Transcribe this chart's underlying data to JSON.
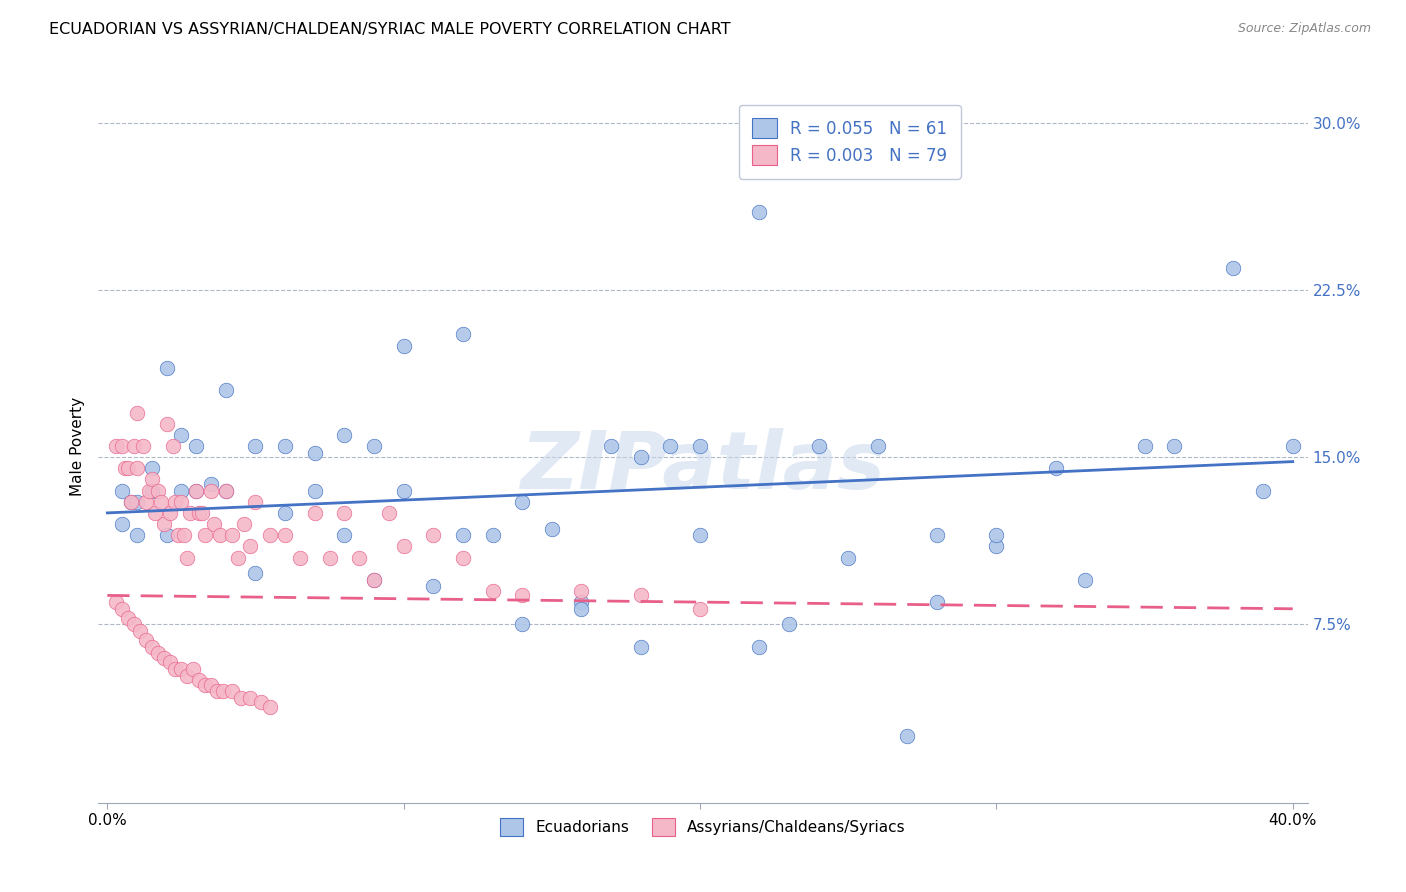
{
  "title": "ECUADORIAN VS ASSYRIAN/CHALDEAN/SYRIAC MALE POVERTY CORRELATION CHART",
  "source": "Source: ZipAtlas.com",
  "ylabel": "Male Poverty",
  "yticks": [
    0.075,
    0.15,
    0.225,
    0.3
  ],
  "ytick_labels": [
    "7.5%",
    "15.0%",
    "22.5%",
    "30.0%"
  ],
  "xmin": -0.003,
  "xmax": 0.405,
  "ymin": -0.005,
  "ymax": 0.315,
  "blue_R": "0.055",
  "blue_N": "61",
  "pink_R": "0.003",
  "pink_N": "79",
  "legend_label_blue": "Ecuadorians",
  "legend_label_pink": "Assyrians/Chaldeans/Syriacs",
  "blue_color": "#aec6e8",
  "pink_color": "#f5b8c8",
  "blue_line_color": "#4472c4",
  "pink_line_color": "#e8608a",
  "watermark": "ZIPatlas",
  "blue_scatter_x": [
    0.005,
    0.008,
    0.01,
    0.015,
    0.02,
    0.025,
    0.03,
    0.035,
    0.04,
    0.05,
    0.06,
    0.07,
    0.08,
    0.09,
    0.1,
    0.11,
    0.12,
    0.13,
    0.14,
    0.15,
    0.16,
    0.17,
    0.18,
    0.19,
    0.2,
    0.22,
    0.24,
    0.26,
    0.28,
    0.3,
    0.32,
    0.35,
    0.38,
    0.4,
    0.005,
    0.01,
    0.015,
    0.02,
    0.025,
    0.03,
    0.04,
    0.05,
    0.06,
    0.07,
    0.08,
    0.09,
    0.1,
    0.12,
    0.14,
    0.16,
    0.18,
    0.2,
    0.22,
    0.25,
    0.28,
    0.3,
    0.33,
    0.36,
    0.39,
    0.23,
    0.27
  ],
  "blue_scatter_y": [
    0.135,
    0.13,
    0.13,
    0.145,
    0.19,
    0.16,
    0.135,
    0.138,
    0.135,
    0.098,
    0.125,
    0.135,
    0.115,
    0.095,
    0.135,
    0.092,
    0.115,
    0.115,
    0.13,
    0.118,
    0.085,
    0.155,
    0.15,
    0.155,
    0.155,
    0.26,
    0.155,
    0.155,
    0.115,
    0.11,
    0.145,
    0.155,
    0.235,
    0.155,
    0.12,
    0.115,
    0.135,
    0.115,
    0.135,
    0.155,
    0.18,
    0.155,
    0.155,
    0.152,
    0.16,
    0.155,
    0.2,
    0.205,
    0.075,
    0.082,
    0.065,
    0.115,
    0.065,
    0.105,
    0.085,
    0.115,
    0.095,
    0.155,
    0.135,
    0.075,
    0.025
  ],
  "pink_scatter_x": [
    0.003,
    0.005,
    0.006,
    0.007,
    0.008,
    0.009,
    0.01,
    0.01,
    0.012,
    0.013,
    0.014,
    0.015,
    0.016,
    0.017,
    0.018,
    0.019,
    0.02,
    0.021,
    0.022,
    0.023,
    0.024,
    0.025,
    0.026,
    0.027,
    0.028,
    0.03,
    0.031,
    0.032,
    0.033,
    0.035,
    0.036,
    0.038,
    0.04,
    0.042,
    0.044,
    0.046,
    0.048,
    0.05,
    0.055,
    0.06,
    0.065,
    0.07,
    0.075,
    0.08,
    0.085,
    0.09,
    0.095,
    0.1,
    0.11,
    0.12,
    0.13,
    0.14,
    0.16,
    0.18,
    0.2,
    0.003,
    0.005,
    0.007,
    0.009,
    0.011,
    0.013,
    0.015,
    0.017,
    0.019,
    0.021,
    0.023,
    0.025,
    0.027,
    0.029,
    0.031,
    0.033,
    0.035,
    0.037,
    0.039,
    0.042,
    0.045,
    0.048,
    0.052,
    0.055
  ],
  "pink_scatter_y": [
    0.155,
    0.155,
    0.145,
    0.145,
    0.13,
    0.155,
    0.145,
    0.17,
    0.155,
    0.13,
    0.135,
    0.14,
    0.125,
    0.135,
    0.13,
    0.12,
    0.165,
    0.125,
    0.155,
    0.13,
    0.115,
    0.13,
    0.115,
    0.105,
    0.125,
    0.135,
    0.125,
    0.125,
    0.115,
    0.135,
    0.12,
    0.115,
    0.135,
    0.115,
    0.105,
    0.12,
    0.11,
    0.13,
    0.115,
    0.115,
    0.105,
    0.125,
    0.105,
    0.125,
    0.105,
    0.095,
    0.125,
    0.11,
    0.115,
    0.105,
    0.09,
    0.088,
    0.09,
    0.088,
    0.082,
    0.085,
    0.082,
    0.078,
    0.075,
    0.072,
    0.068,
    0.065,
    0.062,
    0.06,
    0.058,
    0.055,
    0.055,
    0.052,
    0.055,
    0.05,
    0.048,
    0.048,
    0.045,
    0.045,
    0.045,
    0.042,
    0.042,
    0.04,
    0.038
  ]
}
